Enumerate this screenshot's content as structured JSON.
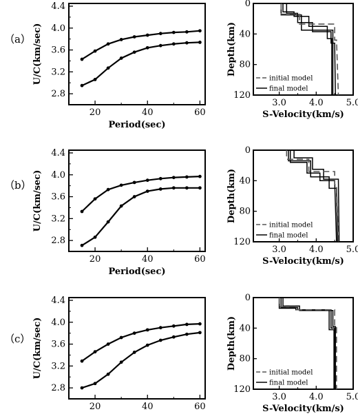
{
  "panels": [
    {
      "label": "（a）",
      "dispersion": {
        "type": "line",
        "xlabel": "Period(sec)",
        "ylabel": "U/C(km/sec)",
        "xlim": [
          10,
          62
        ],
        "ylim": [
          2.6,
          4.45
        ],
        "xticks": [
          "20",
          "40",
          "60"
        ],
        "yticks": [
          "2.8",
          "3.2",
          "3.6",
          "4.0",
          "4.4"
        ],
        "series": [
          {
            "x": [
              15,
              20,
              25,
              30,
              35,
              40,
              45,
              50,
              55,
              60
            ],
            "y": [
              3.43,
              3.58,
              3.71,
              3.79,
              3.84,
              3.87,
              3.9,
              3.92,
              3.93,
              3.95
            ]
          },
          {
            "x": [
              15,
              20,
              25,
              30,
              35,
              40,
              45,
              50,
              55,
              60
            ],
            "y": [
              2.95,
              3.06,
              3.27,
              3.45,
              3.56,
              3.64,
              3.68,
              3.71,
              3.73,
              3.74
            ]
          }
        ]
      },
      "velocity": {
        "type": "line",
        "xlabel": "S-Velocity(km/s)",
        "ylabel": "Depth(km)",
        "xlim": [
          2.3,
          5.0
        ],
        "ylim": [
          0,
          120
        ],
        "xticks": [
          "3.0",
          "4.0",
          "5.0"
        ],
        "yticks": [
          "0",
          "40",
          "80",
          "120"
        ],
        "legend": [
          "initial model",
          "final model"
        ],
        "initial": [
          [
            3.05,
            0
          ],
          [
            3.05,
            14
          ],
          [
            3.55,
            14
          ],
          [
            3.55,
            27
          ],
          [
            4.5,
            27
          ],
          [
            4.5,
            48
          ],
          [
            4.55,
            48
          ],
          [
            4.6,
            120
          ]
        ],
        "final": [
          [
            [
              3.1,
              0
            ],
            [
              3.1,
              11
            ],
            [
              3.4,
              11
            ],
            [
              3.4,
              17
            ],
            [
              3.8,
              17
            ],
            [
              3.8,
              30
            ],
            [
              4.3,
              30
            ],
            [
              4.3,
              46
            ],
            [
              4.42,
              46
            ],
            [
              4.42,
              120
            ]
          ],
          [
            [
              3.2,
              0
            ],
            [
              3.2,
              13
            ],
            [
              3.5,
              13
            ],
            [
              3.5,
              25
            ],
            [
              3.9,
              25
            ],
            [
              3.9,
              37
            ],
            [
              4.4,
              37
            ],
            [
              4.4,
              52
            ],
            [
              4.5,
              52
            ],
            [
              4.52,
              120
            ]
          ],
          [
            [
              3.05,
              0
            ],
            [
              3.05,
              15
            ],
            [
              3.6,
              15
            ],
            [
              3.6,
              35
            ],
            [
              4.45,
              35
            ],
            [
              4.45,
              120
            ]
          ]
        ]
      }
    },
    {
      "label": "（b）",
      "dispersion": {
        "type": "line",
        "xlabel": "Period(sec)",
        "ylabel": "U/C(km/sec)",
        "xlim": [
          10,
          62
        ],
        "ylim": [
          2.6,
          4.45
        ],
        "xticks": [
          "20",
          "40",
          "60"
        ],
        "yticks": [
          "2.8",
          "3.2",
          "3.6",
          "4.0",
          "4.4"
        ],
        "series": [
          {
            "x": [
              15,
              20,
              25,
              30,
              35,
              40,
              45,
              50,
              55,
              60
            ],
            "y": [
              3.33,
              3.56,
              3.73,
              3.81,
              3.86,
              3.9,
              3.93,
              3.95,
              3.96,
              3.97
            ]
          },
          {
            "x": [
              15,
              20,
              25,
              30,
              35,
              40,
              45,
              50,
              55,
              60
            ],
            "y": [
              2.71,
              2.86,
              3.14,
              3.43,
              3.6,
              3.7,
              3.74,
              3.76,
              3.76,
              3.76
            ]
          }
        ]
      },
      "velocity": {
        "type": "line",
        "xlabel": "S-Velocity(km/s)",
        "ylabel": "Depth(km)",
        "xlim": [
          2.3,
          5.0
        ],
        "ylim": [
          0,
          120
        ],
        "xticks": [
          "3.0",
          "4.0",
          "5.0"
        ],
        "yticks": [
          "0",
          "40",
          "80",
          "120"
        ],
        "legend": [
          "initial model",
          "final model"
        ],
        "initial": [
          [
            3.2,
            0
          ],
          [
            3.2,
            12
          ],
          [
            3.8,
            12
          ],
          [
            3.8,
            28
          ],
          [
            4.5,
            28
          ],
          [
            4.5,
            45
          ],
          [
            4.55,
            45
          ],
          [
            4.6,
            120
          ]
        ],
        "final": [
          [
            [
              3.3,
              0
            ],
            [
              3.3,
              16
            ],
            [
              3.75,
              16
            ],
            [
              3.75,
              30
            ],
            [
              4.1,
              30
            ],
            [
              4.1,
              40
            ],
            [
              4.5,
              40
            ],
            [
              4.55,
              120
            ]
          ],
          [
            [
              3.4,
              0
            ],
            [
              3.4,
              10
            ],
            [
              3.9,
              10
            ],
            [
              3.9,
              25
            ],
            [
              4.2,
              25
            ],
            [
              4.2,
              38
            ],
            [
              4.6,
              38
            ],
            [
              4.62,
              120
            ]
          ],
          [
            [
              3.25,
              0
            ],
            [
              3.25,
              14
            ],
            [
              3.85,
              14
            ],
            [
              3.85,
              35
            ],
            [
              4.35,
              35
            ],
            [
              4.35,
              50
            ],
            [
              4.55,
              50
            ],
            [
              4.58,
              120
            ]
          ]
        ]
      }
    },
    {
      "label": "（c）",
      "dispersion": {
        "type": "line",
        "xlabel": "Period(sec)",
        "ylabel": "U/C(km/sec)",
        "xlim": [
          10,
          62
        ],
        "ylim": [
          2.6,
          4.45
        ],
        "xticks": [
          "20",
          "40",
          "60"
        ],
        "yticks": [
          "2.8",
          "3.2",
          "3.6",
          "4.0",
          "4.4"
        ],
        "series": [
          {
            "x": [
              15,
              20,
              25,
              30,
              35,
              40,
              45,
              50,
              55,
              60
            ],
            "y": [
              3.29,
              3.46,
              3.6,
              3.72,
              3.8,
              3.86,
              3.9,
              3.93,
              3.96,
              3.97
            ]
          },
          {
            "x": [
              15,
              20,
              25,
              30,
              35,
              40,
              45,
              50,
              55,
              60
            ],
            "y": [
              2.8,
              2.88,
              3.05,
              3.27,
              3.45,
              3.58,
              3.67,
              3.73,
              3.78,
              3.81
            ]
          }
        ]
      },
      "velocity": {
        "type": "line",
        "xlabel": "S-Velocity(km/s)",
        "ylabel": "Depth(km)",
        "xlim": [
          2.3,
          5.0
        ],
        "ylim": [
          0,
          120
        ],
        "xticks": [
          "3.0",
          "4.0",
          "5.0"
        ],
        "yticks": [
          "0",
          "40",
          "80",
          "120"
        ],
        "legend": [
          "initial model",
          "final model"
        ],
        "initial": [
          [
            3.0,
            0
          ],
          [
            3.0,
            12
          ],
          [
            3.45,
            12
          ],
          [
            3.45,
            16
          ],
          [
            4.5,
            16
          ],
          [
            4.5,
            38
          ],
          [
            4.55,
            38
          ],
          [
            4.55,
            120
          ]
        ],
        "final": [
          [
            [
              3.05,
              0
            ],
            [
              3.05,
              13
            ],
            [
              3.5,
              13
            ],
            [
              3.5,
              16
            ],
            [
              4.4,
              16
            ],
            [
              4.4,
              40
            ],
            [
              4.5,
              40
            ],
            [
              4.5,
              120
            ]
          ],
          [
            [
              3.1,
              0
            ],
            [
              3.1,
              11
            ],
            [
              3.55,
              11
            ],
            [
              3.55,
              17
            ],
            [
              4.45,
              17
            ],
            [
              4.45,
              38
            ],
            [
              4.52,
              38
            ],
            [
              4.52,
              120
            ]
          ],
          [
            [
              3.0,
              0
            ],
            [
              3.0,
              14
            ],
            [
              3.45,
              14
            ],
            [
              3.45,
              16
            ],
            [
              4.35,
              16
            ],
            [
              4.35,
              42
            ],
            [
              4.48,
              42
            ],
            [
              4.48,
              120
            ]
          ]
        ]
      }
    }
  ]
}
